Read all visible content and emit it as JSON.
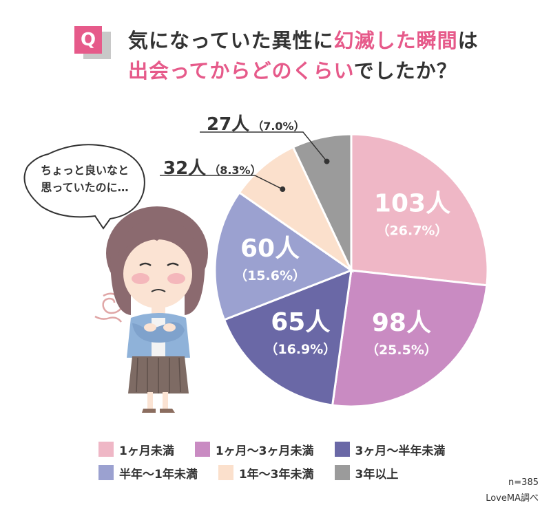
{
  "header": {
    "q_badge": "Q",
    "line1_dark": "気になっていた異性に",
    "line1_pink": "幻滅した瞬間",
    "line1_tail": "は",
    "line2_pink": "出会ってからどのくらい",
    "line2_tail": "でしたか？"
  },
  "bubble": {
    "line1": "ちょっと良いなと",
    "line2": "思っていたのに…"
  },
  "chart_data": {
    "type": "pie",
    "total": 385,
    "start": "12 o'clock, clockwise",
    "slices": [
      {
        "label": "1ヶ月未満",
        "count": 103,
        "count_label": "103人",
        "percent": 26.7,
        "percent_label": "（26.7%）",
        "color": "#efb7c6"
      },
      {
        "label": "1ヶ月〜3ヶ月未満",
        "count": 98,
        "count_label": "98人",
        "percent": 25.5,
        "percent_label": "（25.5%）",
        "color": "#c98bc2"
      },
      {
        "label": "3ヶ月〜半年未満",
        "count": 65,
        "count_label": "65人",
        "percent": 16.9,
        "percent_label": "（16.9%）",
        "color": "#6a68a6"
      },
      {
        "label": "半年〜1年未満",
        "count": 60,
        "count_label": "60人",
        "percent": 15.6,
        "percent_label": "（15.6%）",
        "color": "#9ba1d0"
      },
      {
        "label": "1年〜3年未満",
        "count": 32,
        "count_label": "32人",
        "percent": 8.3,
        "percent_label": "（8.3%）",
        "color": "#fbe0cc"
      },
      {
        "label": "3年以上",
        "count": 27,
        "count_label": "27人",
        "percent": 7.0,
        "percent_label": "（7.0%）",
        "color": "#9b9b9b"
      }
    ]
  },
  "footer": {
    "n": "n=385",
    "source": "LoveMA調べ"
  }
}
